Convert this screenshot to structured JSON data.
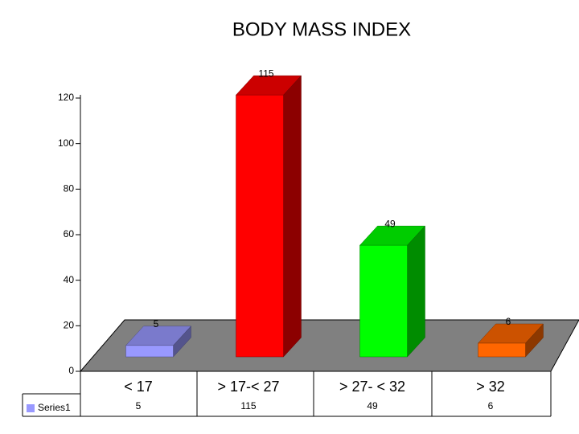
{
  "chart_data": {
    "type": "bar3d",
    "title": "BODY MASS INDEX",
    "categories": [
      "< 17",
      "> 17-< 27",
      "> 27- < 32",
      "> 32"
    ],
    "series": [
      {
        "name": "Series1",
        "color": "#9999ff",
        "colors": [
          "#9999ff",
          "#ff0000",
          "#00ff00",
          "#ff6600"
        ],
        "values": [
          5,
          115,
          49,
          6
        ]
      }
    ],
    "ylim": [
      0,
      120
    ],
    "yticks": [
      0,
      20,
      40,
      60,
      80,
      100,
      120
    ]
  }
}
